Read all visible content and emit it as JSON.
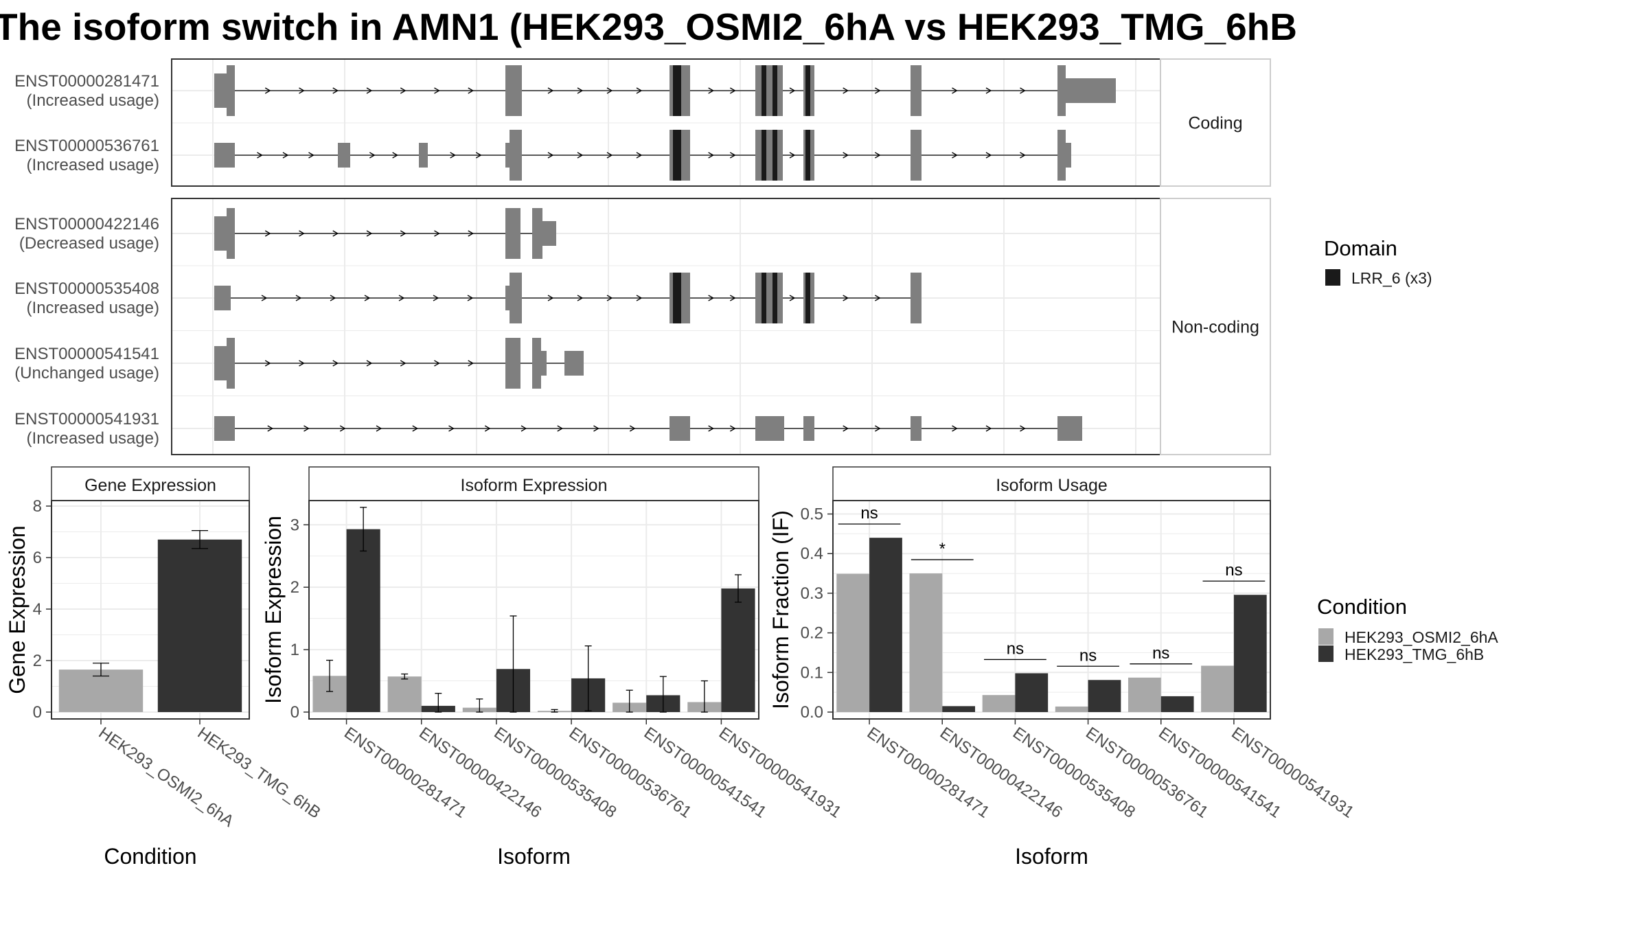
{
  "title": "The isoform switch in AMN1 (HEK293_OSMI2_6hA vs HEK293_TMG_6hB",
  "colors": {
    "exon": "#7f7f7f",
    "domain": "#1a1a1a",
    "condition_a": "#a8a8a8",
    "condition_b": "#333333",
    "grid": "#ebebeb",
    "panel_border": "#333333",
    "strip_fill": "#ffffff"
  },
  "structure": {
    "domain_legend_title": "Domain",
    "domain_legend_item": "LRR_6 (x3)",
    "facets": [
      {
        "label": "Coding",
        "transcripts": [
          {
            "id": "ENST00000281471",
            "usage": "(Increased usage)"
          },
          {
            "id": "ENST00000536761",
            "usage": "(Increased usage)"
          }
        ]
      },
      {
        "label": "Non-coding",
        "transcripts": [
          {
            "id": "ENST00000422146",
            "usage": "(Decreased usage)"
          },
          {
            "id": "ENST00000535408",
            "usage": "(Increased usage)"
          },
          {
            "id": "ENST00000541541",
            "usage": "(Unchanged usage)"
          },
          {
            "id": "ENST00000541931",
            "usage": "(Increased usage)"
          }
        ]
      }
    ]
  },
  "chart_data": [
    {
      "type": "bar",
      "title": "Gene Expression",
      "xlabel": "Condition",
      "ylabel": "Gene Expression",
      "ylim": [
        0,
        8
      ],
      "yticks": [
        "0",
        "2",
        "4",
        "6",
        "8"
      ],
      "categories": [
        "HEK293_OSMI2_6hA",
        "HEK293_TMG_6hB"
      ],
      "values": [
        1.65,
        6.7
      ],
      "errors": [
        0.25,
        0.35
      ],
      "grid": true
    },
    {
      "type": "bar",
      "title": "Isoform Expression",
      "xlabel": "Isoform",
      "ylabel": "Isoform Expression",
      "ylim": [
        0,
        3.3
      ],
      "yticks": [
        "0",
        "1",
        "2",
        "3"
      ],
      "categories": [
        "ENST00000281471",
        "ENST00000422146",
        "ENST00000535408",
        "ENST00000536761",
        "ENST00000541541",
        "ENST00000541931"
      ],
      "series": [
        {
          "name": "HEK293_OSMI2_6hA",
          "values": [
            0.58,
            0.57,
            0.07,
            0.02,
            0.15,
            0.16
          ],
          "errors": [
            0.25,
            0.04,
            0.14,
            0.02,
            0.2,
            0.34
          ]
        },
        {
          "name": "HEK293_TMG_6hB",
          "values": [
            2.93,
            0.1,
            0.69,
            0.54,
            0.27,
            1.98
          ],
          "errors": [
            0.35,
            0.2,
            0.85,
            0.52,
            0.3,
            0.22
          ]
        }
      ],
      "grid": true
    },
    {
      "type": "bar",
      "title": "Isoform Usage",
      "xlabel": "Isoform",
      "ylabel": "Isoform Fraction (IF)",
      "ylim": [
        0,
        0.52
      ],
      "yticks": [
        "0.0",
        "0.1",
        "0.2",
        "0.3",
        "0.4",
        "0.5"
      ],
      "categories": [
        "ENST00000281471",
        "ENST00000422146",
        "ENST00000535408",
        "ENST00000536761",
        "ENST00000541541",
        "ENST00000541931"
      ],
      "series": [
        {
          "name": "HEK293_OSMI2_6hA",
          "values": [
            0.349,
            0.35,
            0.043,
            0.014,
            0.087,
            0.117
          ]
        },
        {
          "name": "HEK293_TMG_6hB",
          "values": [
            0.44,
            0.015,
            0.098,
            0.081,
            0.04,
            0.296
          ]
        }
      ],
      "significance": [
        "ns",
        "*",
        "ns",
        "ns",
        "ns",
        "ns"
      ],
      "grid": true
    }
  ],
  "condition_legend": {
    "title": "Condition",
    "items": [
      "HEK293_OSMI2_6hA",
      "HEK293_TMG_6hB"
    ]
  }
}
